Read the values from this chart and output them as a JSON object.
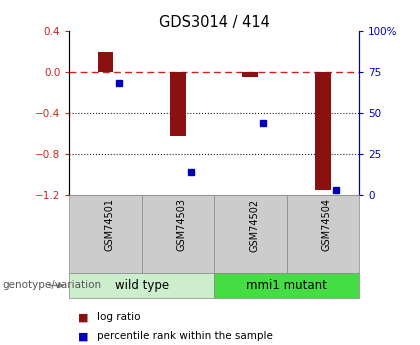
{
  "title": "GDS3014 / 414",
  "samples": [
    "GSM74501",
    "GSM74503",
    "GSM74502",
    "GSM74504"
  ],
  "log_ratios": [
    0.2,
    -0.62,
    -0.05,
    -1.15
  ],
  "percentile_ranks": [
    68,
    14,
    44,
    3
  ],
  "groups": [
    {
      "label": "wild type",
      "indices": [
        0,
        1
      ],
      "color": "#cceecc"
    },
    {
      "label": "mmi1 mutant",
      "indices": [
        2,
        3
      ],
      "color": "#44dd44"
    }
  ],
  "ylim_left": [
    -1.2,
    0.4
  ],
  "yticks_left": [
    0.4,
    0.0,
    -0.4,
    -0.8,
    -1.2
  ],
  "ylim_right": [
    0,
    100
  ],
  "yticks_right": [
    0,
    25,
    50,
    75,
    100
  ],
  "bar_color": "#8B1010",
  "dot_color": "#0000BB",
  "zero_line_color": "#CC2222",
  "grid_color": "#222222",
  "bar_width": 0.22,
  "annotation_label_left": "genotype/variation",
  "legend_log_ratio": "log ratio",
  "legend_percentile": "percentile rank within the sample",
  "group_label_fontsize": 8.5,
  "sample_label_fontsize": 7,
  "title_fontsize": 10.5
}
